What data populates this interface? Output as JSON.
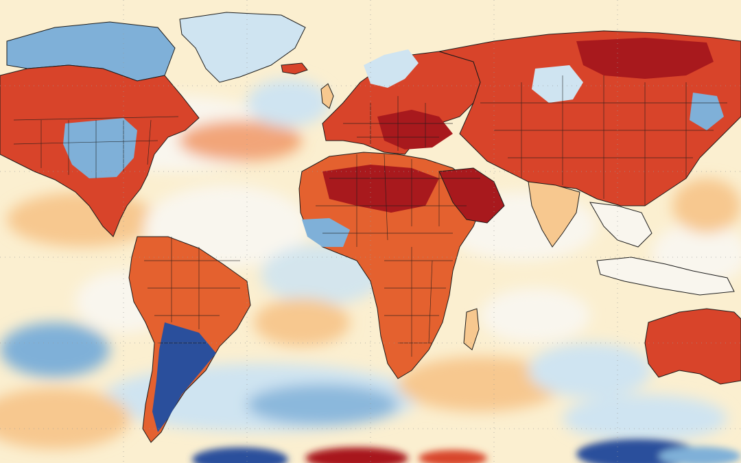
{
  "map": {
    "projection": "equirectangular",
    "graticule": "dotted",
    "borders": "country",
    "legend": "none"
  },
  "colors": {
    "background": "#fbefd0",
    "strong_warm": "#a8191d",
    "warm": "#d8442a",
    "mild_warm": "#ef8a52",
    "slight_warm": "#f7c88f",
    "neutral": "#f9f6ee",
    "slight_cool": "#cfe4f1",
    "cool": "#7fb0d8",
    "strong_cool": "#2a4f9c",
    "border_line": "#1a1a1a"
  }
}
